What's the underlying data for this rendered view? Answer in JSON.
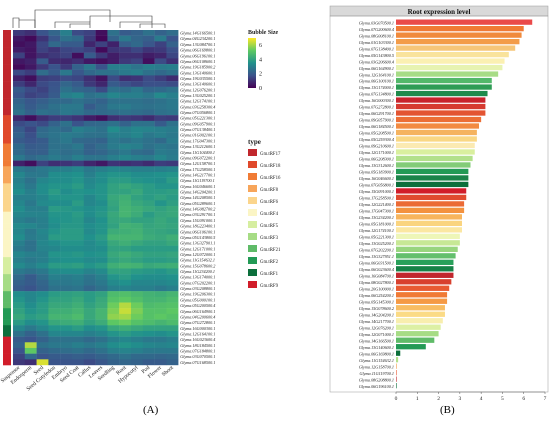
{
  "panels": {
    "a_label": "(A)",
    "b_label": "(B)"
  },
  "heatmap": {
    "genes": [
      "Glyma.14G166500.1",
      "Glyma.04G234200.1",
      "Glyma.13G084700.1",
      "Glyma.06G169800.1",
      "Glyma.06G196100.1",
      "Glyma.06G108600.1",
      "Glyma.19G185900.2",
      "Glyma.13G140600.1",
      "Glyma.19G035500.1",
      "Glyma.13G140600.1",
      "Glyma.12G076200.1",
      "Glyma.13G025200.1",
      "Glyma.12G174100.1",
      "Glyma.03G258300.4",
      "Glyma.07G056800.1",
      "Glyma.05G221300.1",
      "Glyma.09G057900.1",
      "Glyma.07G138400.1",
      "Glyma.01G002100.1",
      "Glyma.17G047300.1",
      "Glyma.13G212600.1",
      "Glyma.11G104400.1",
      "Glyma.09G072200.1",
      "Glyma.12G158700.1",
      "Glyma.17G258500.1",
      "Glyma.14G217700.1",
      "Glyma.11G119700.1",
      "Glyma.16G046600.1",
      "Glyma.14G204200.1",
      "Glyma.14G208500.1",
      "Glyma.05G289600.1",
      "Glyma.14G082700.2",
      "Glyma.03G291700.1",
      "Glyma.15G091000.1",
      "Glyma.18G223400.1",
      "Glyma.06G106100.1",
      "Glyma.05G143800.5",
      "Glyma.13G327901.1",
      "Glyma.12G171000.1",
      "Glyma.12G072000.1",
      "Glyma.11G154632.1",
      "Glyma.15G078600.2",
      "Glyma.11G234200.1",
      "Glyma.13G174000.1",
      "Glyma.07G202200.1",
      "Glyma.03G208800.1",
      "Glyma.19G206300.1",
      "Glyma.05G000100.1",
      "Glyma.05G200500.4",
      "Glyma.06G164900.1",
      "Glyma.04G200600.4",
      "Glyma.07G272800.1",
      "Glyma.16G000300.1",
      "Glyma.12G164100.1",
      "Glyma.16G023600.4",
      "Glyma.18G184500.1",
      "Glyma.07G184800.1",
      "Glyma.03G070500.1",
      "Glyma.07G168500.1"
    ],
    "tissues": [
      "Suspensor",
      "Endosperm",
      "Seed",
      "Seed Cotyledon",
      "Embryo",
      "Seed Coat",
      "Callus",
      "Leaves",
      "Seedling",
      "Root",
      "Hypocotyl",
      "Pod",
      "Flower",
      "Shoot"
    ],
    "legend_title": "Bubble Size",
    "legend_ticks": [
      "6",
      "4",
      "2",
      "0"
    ],
    "colorbar_stops": [
      "#440154",
      "#3b528b",
      "#21918c",
      "#5ec962",
      "#fde725"
    ],
    "type_title": "type",
    "types": [
      {
        "name": "Gm.tRF17",
        "color": "#c1272d"
      },
      {
        "name": "Gm.tRF18",
        "color": "#e0492b"
      },
      {
        "name": "Gm.tRF16",
        "color": "#f07b35"
      },
      {
        "name": "Gm.tRF8",
        "color": "#f7a55a"
      },
      {
        "name": "Gm.tRF6",
        "color": "#fbd58c"
      },
      {
        "name": "Gm.tRF4",
        "color": "#fbf5c5"
      },
      {
        "name": "Gm.tRF5",
        "color": "#d6eea0"
      },
      {
        "name": "Gm.tRF3",
        "color": "#a6dc85"
      },
      {
        "name": "Gm.tRF21",
        "color": "#5fbb68"
      },
      {
        "name": "Gm.tRF2",
        "color": "#239a55"
      },
      {
        "name": "Gm.tRF1",
        "color": "#0c6f3c"
      },
      {
        "name": "Gm.tRF9",
        "color": "#d11d2a"
      }
    ],
    "row_type_index": [
      0,
      0,
      0,
      0,
      0,
      0,
      0,
      0,
      0,
      0,
      0,
      0,
      0,
      0,
      0,
      1,
      1,
      1,
      1,
      1,
      2,
      2,
      2,
      2,
      3,
      3,
      3,
      4,
      4,
      4,
      4,
      4,
      5,
      5,
      5,
      5,
      5,
      5,
      5,
      5,
      6,
      6,
      6,
      7,
      7,
      7,
      8,
      8,
      8,
      9,
      9,
      9,
      10,
      10,
      11,
      11,
      11,
      11,
      11
    ],
    "values": [
      [
        1.2,
        1.0,
        1.8,
        2.3,
        3.0,
        1.6,
        1.4,
        0.3,
        2.6,
        2.0,
        2.2,
        2.6,
        2.2,
        2.5
      ],
      [
        0.5,
        0.2,
        1.1,
        1.9,
        2.6,
        2.4,
        1.2,
        0.1,
        2.2,
        2.8,
        2.3,
        2.1,
        2.9,
        1.8
      ],
      [
        0.3,
        0.5,
        1.5,
        2.4,
        2.0,
        2.0,
        0.8,
        1.4,
        0.7,
        2.1,
        2.4,
        1.9,
        1.4,
        2.2
      ],
      [
        0.6,
        0.4,
        1.4,
        1.1,
        1.5,
        1.6,
        1.4,
        0.2,
        1.1,
        1.2,
        1.5,
        1.1,
        1.2,
        1.7
      ],
      [
        1.4,
        0.4,
        1.0,
        1.2,
        1.4,
        0.3,
        2.0,
        1.2,
        0.6,
        1.0,
        1.0,
        0.6,
        0.8,
        1.5
      ],
      [
        0.5,
        0.7,
        2.0,
        0.9,
        0.8,
        1.0,
        0.5,
        0.3,
        0.6,
        1.2,
        1.4,
        0.3,
        1.6,
        1.0
      ],
      [
        0.2,
        0.5,
        1.2,
        1.8,
        1.2,
        2.2,
        2.8,
        1.8,
        3.0,
        3.0,
        2.7,
        3.0,
        2.9,
        3.0
      ],
      [
        1.6,
        1.3,
        2.5,
        2.0,
        2.8,
        1.9,
        2.4,
        2.6,
        2.6,
        2.9,
        3.0,
        2.6,
        2.4,
        2.6
      ],
      [
        0.7,
        0.3,
        1.3,
        1.4,
        1.6,
        1.5,
        1.0,
        0.4,
        1.6,
        1.0,
        1.1,
        1.6,
        1.3,
        0.9
      ],
      [
        1.3,
        0.8,
        1.6,
        1.8,
        2.3,
        2.0,
        1.2,
        0.8,
        2.0,
        1.7,
        1.5,
        1.7,
        1.7,
        1.6
      ],
      [
        2.0,
        1.6,
        1.4,
        1.9,
        2.6,
        2.3,
        2.2,
        1.6,
        2.6,
        2.5,
        2.8,
        2.3,
        2.4,
        2.6
      ],
      [
        1.8,
        1.4,
        1.6,
        2.0,
        3.0,
        3.2,
        2.6,
        2.8,
        3.2,
        3.0,
        3.0,
        2.8,
        3.3,
        3.0
      ],
      [
        2.2,
        1.9,
        2.1,
        2.4,
        2.4,
        2.6,
        2.4,
        2.2,
        2.6,
        2.6,
        2.6,
        2.5,
        2.6,
        2.8
      ],
      [
        2.4,
        2.0,
        2.3,
        2.6,
        2.8,
        2.8,
        2.0,
        2.4,
        2.8,
        2.9,
        2.7,
        2.6,
        2.7,
        2.8
      ],
      [
        2.6,
        2.2,
        2.6,
        2.5,
        2.8,
        2.7,
        2.4,
        2.4,
        2.5,
        2.6,
        2.5,
        2.4,
        2.6,
        2.7
      ],
      [
        0.8,
        0.3,
        1.0,
        1.3,
        1.3,
        1.1,
        0.6,
        0.3,
        1.0,
        1.2,
        1.1,
        0.9,
        1.3,
        1.2
      ],
      [
        1.6,
        1.8,
        1.6,
        2.2,
        2.6,
        1.8,
        2.3,
        2.4,
        2.6,
        2.2,
        2.6,
        2.6,
        2.0,
        2.6
      ],
      [
        2.0,
        1.5,
        2.4,
        2.6,
        2.4,
        3.0,
        2.8,
        2.6,
        3.4,
        3.0,
        3.2,
        3.1,
        3.0,
        2.9
      ],
      [
        2.2,
        1.7,
        2.5,
        2.7,
        2.9,
        2.8,
        2.6,
        2.6,
        3.0,
        3.0,
        3.2,
        2.8,
        3.0,
        2.8
      ],
      [
        2.0,
        1.8,
        2.0,
        2.6,
        2.8,
        2.4,
        2.3,
        2.2,
        2.8,
        2.6,
        2.8,
        2.6,
        2.4,
        2.9
      ],
      [
        2.4,
        2.0,
        2.1,
        2.6,
        2.6,
        2.8,
        2.2,
        2.5,
        2.9,
        3.1,
        3.0,
        2.6,
        2.8,
        2.7
      ],
      [
        2.4,
        2.1,
        2.1,
        2.7,
        2.5,
        2.6,
        2.2,
        2.3,
        2.6,
        2.8,
        2.5,
        2.4,
        2.9,
        2.8
      ],
      [
        2.8,
        2.4,
        2.6,
        2.9,
        2.7,
        3.0,
        2.7,
        2.7,
        3.0,
        3.2,
        3.0,
        2.9,
        3.2,
        2.9
      ],
      [
        0.7,
        0.3,
        1.4,
        1.0,
        1.1,
        1.3,
        0.8,
        0.5,
        1.1,
        1.0,
        1.1,
        0.9,
        1.3,
        1.2
      ],
      [
        2.8,
        2.6,
        2.8,
        3.0,
        3.0,
        3.2,
        2.8,
        3.0,
        3.2,
        3.1,
        3.0,
        3.0,
        3.0,
        3.1
      ],
      [
        3.2,
        2.8,
        2.8,
        3.4,
        3.4,
        3.5,
        3.0,
        3.4,
        3.6,
        3.6,
        3.4,
        3.4,
        3.5,
        3.6
      ],
      [
        3.0,
        2.6,
        3.2,
        3.4,
        3.4,
        3.6,
        3.2,
        3.4,
        3.8,
        3.8,
        3.6,
        3.5,
        3.4,
        3.8
      ],
      [
        3.2,
        2.8,
        3.4,
        3.6,
        3.6,
        3.8,
        3.3,
        3.6,
        4.0,
        4.2,
        4.0,
        3.8,
        3.6,
        3.6
      ],
      [
        3.4,
        3.0,
        3.4,
        3.8,
        3.4,
        3.6,
        3.5,
        3.6,
        4.0,
        4.0,
        4.2,
        3.8,
        3.8,
        3.9
      ],
      [
        3.0,
        3.0,
        3.2,
        3.6,
        3.6,
        3.6,
        3.2,
        3.6,
        4.2,
        4.4,
        4.0,
        3.8,
        4.0,
        3.8
      ],
      [
        3.2,
        2.8,
        3.3,
        3.4,
        3.4,
        3.8,
        3.2,
        3.4,
        4.1,
        4.5,
        4.2,
        4.0,
        3.6,
        3.9
      ],
      [
        3.4,
        3.0,
        3.0,
        3.8,
        3.7,
        3.6,
        3.4,
        3.6,
        4.0,
        4.6,
        4.4,
        4.2,
        4.0,
        4.2
      ],
      [
        3.2,
        3.1,
        3.1,
        3.6,
        3.6,
        3.8,
        3.4,
        3.7,
        4.2,
        4.6,
        4.3,
        3.8,
        4.1,
        4.2
      ],
      [
        3.0,
        2.8,
        3.0,
        3.5,
        3.6,
        3.7,
        3.2,
        3.5,
        4.1,
        4.2,
        4.0,
        4.0,
        4.2,
        4.0
      ],
      [
        3.3,
        3.2,
        3.0,
        3.4,
        3.7,
        3.7,
        3.4,
        3.6,
        4.0,
        4.5,
        4.4,
        4.1,
        4.2,
        4.1
      ],
      [
        3.2,
        2.8,
        3.2,
        3.6,
        3.8,
        3.8,
        3.3,
        3.6,
        4.3,
        4.4,
        4.5,
        4.2,
        4.1,
        4.0
      ],
      [
        3.4,
        2.9,
        3.1,
        3.8,
        3.8,
        3.8,
        3.5,
        3.8,
        4.6,
        4.6,
        4.6,
        4.3,
        4.2,
        4.4
      ],
      [
        3.0,
        2.6,
        3.2,
        3.4,
        3.6,
        3.6,
        3.3,
        3.6,
        4.2,
        4.4,
        4.2,
        4.0,
        4.0,
        4.2
      ],
      [
        2.8,
        2.6,
        3.1,
        3.2,
        3.4,
        3.4,
        3.3,
        3.4,
        4.0,
        4.0,
        3.8,
        3.8,
        3.8,
        3.8
      ],
      [
        3.2,
        3.0,
        3.0,
        3.6,
        3.6,
        3.7,
        3.5,
        3.6,
        4.2,
        4.4,
        4.2,
        4.0,
        4.0,
        4.1
      ],
      [
        3.0,
        2.8,
        3.0,
        3.4,
        3.5,
        3.5,
        3.3,
        3.4,
        4.0,
        4.2,
        4.0,
        3.8,
        3.8,
        3.9
      ],
      [
        3.3,
        3.0,
        3.3,
        3.8,
        3.8,
        3.9,
        3.6,
        3.8,
        4.4,
        4.6,
        4.5,
        4.2,
        4.3,
        4.4
      ],
      [
        2.8,
        2.6,
        2.8,
        3.3,
        3.4,
        3.4,
        3.1,
        3.3,
        4.0,
        4.0,
        3.8,
        3.7,
        3.6,
        3.8
      ],
      [
        2.4,
        2.0,
        2.5,
        3.0,
        2.9,
        3.0,
        2.7,
        3.0,
        3.6,
        3.8,
        3.5,
        3.4,
        3.4,
        3.5
      ],
      [
        2.2,
        2.0,
        2.3,
        2.8,
        2.8,
        2.9,
        2.6,
        2.8,
        3.3,
        3.5,
        3.2,
        3.2,
        3.2,
        3.3
      ],
      [
        2.0,
        1.8,
        2.2,
        2.6,
        2.6,
        2.7,
        2.3,
        2.6,
        3.0,
        3.1,
        3.0,
        3.0,
        2.8,
        3.0
      ],
      [
        3.4,
        3.2,
        3.4,
        3.8,
        3.9,
        4.0,
        3.8,
        4.0,
        4.8,
        4.9,
        4.7,
        4.5,
        4.4,
        4.6
      ],
      [
        3.6,
        3.2,
        3.6,
        4.0,
        4.0,
        4.2,
        3.8,
        4.2,
        5.0,
        5.2,
        4.9,
        4.6,
        4.6,
        4.8
      ],
      [
        3.8,
        3.4,
        3.8,
        4.2,
        4.2,
        4.4,
        4.0,
        4.3,
        5.4,
        6.2,
        5.4,
        4.8,
        4.9,
        5.0
      ],
      [
        4.0,
        3.6,
        3.8,
        4.4,
        4.4,
        4.6,
        4.2,
        4.6,
        5.6,
        6.4,
        5.6,
        5.0,
        5.0,
        5.2
      ],
      [
        4.2,
        3.8,
        4.0,
        4.6,
        4.6,
        4.8,
        4.2,
        4.6,
        5.8,
        6.0,
        5.4,
        5.0,
        5.2,
        5.0
      ],
      [
        3.8,
        3.4,
        3.6,
        4.2,
        4.3,
        4.4,
        4.0,
        4.3,
        5.2,
        5.4,
        5.0,
        4.8,
        4.6,
        4.8
      ],
      [
        3.2,
        2.8,
        3.2,
        3.6,
        3.6,
        3.8,
        3.4,
        3.6,
        4.2,
        4.4,
        4.2,
        4.0,
        4.0,
        4.0
      ],
      [
        2.6,
        2.2,
        2.6,
        3.2,
        3.2,
        3.2,
        3.0,
        3.2,
        3.6,
        3.8,
        3.6,
        3.5,
        3.4,
        3.6
      ],
      [
        2.0,
        1.8,
        2.2,
        2.6,
        2.6,
        2.6,
        2.4,
        2.6,
        3.0,
        3.2,
        3.0,
        2.8,
        2.8,
        3.0
      ],
      [
        2.2,
        6.2,
        2.6,
        2.8,
        2.8,
        3.0,
        2.8,
        3.0,
        3.4,
        3.6,
        3.4,
        3.2,
        3.1,
        3.2
      ],
      [
        1.8,
        5.2,
        2.2,
        2.4,
        2.5,
        2.6,
        2.4,
        2.6,
        3.0,
        3.1,
        3.0,
        2.8,
        2.8,
        2.8
      ],
      [
        1.4,
        2.4,
        1.8,
        2.0,
        2.0,
        2.1,
        2.0,
        2.2,
        2.4,
        2.6,
        2.4,
        2.4,
        2.3,
        2.4
      ],
      [
        1.2,
        1.0,
        6.6,
        1.8,
        1.8,
        1.8,
        1.6,
        1.9,
        2.2,
        2.3,
        2.2,
        2.0,
        2.0,
        2.2
      ]
    ]
  },
  "chart_data": {
    "type": "bar",
    "title": "Root expression level",
    "orientation": "horizontal",
    "xlim": [
      0,
      7
    ],
    "xticks": [
      "0",
      "1",
      "2",
      "3",
      "4",
      "5",
      "6",
      "7"
    ],
    "categories": [
      "Glyma.03G070500.1",
      "Glyma.07G200600.4",
      "Glyma.08G008100.1",
      "Glyma.01G103300.1",
      "Glyma.07G138400.1",
      "Glyma.05G143800.5",
      "Glyma.03G206600.4",
      "Glyma.06G164900.1",
      "Glyma.12G164100.1",
      "Glyma.06G100100.1",
      "Glyma.13G174000.1",
      "Glyma.07G134800.1",
      "Glyma.16G000300.1",
      "Glyma.07G272800.1",
      "Glyma.06G291700.1",
      "Glyma.09G057900.1",
      "Glyma.06G184500.1",
      "Glyma.05G208500.1",
      "Glyma.05G259300.4",
      "Glyma.09G210600.1",
      "Glyma.12G171000.1",
      "Glyma.06G208300.1",
      "Glyma.13G312600.1",
      "Glyma.05G183900.1",
      "Glyma.16G046600.1",
      "Glyma.07G056800.1",
      "Glyma.15G091000.1",
      "Glyma.17G258500.1",
      "Glyma.12G221400.1",
      "Glyma.17G047300.1",
      "Glyma.13G234200.1",
      "Glyma.05G181000.1",
      "Glyma.12G174100.1",
      "Glyma.05G221300.1",
      "Glyma.13G025200.1",
      "Glyma.07G202200.1",
      "Glyma.13G327951.1",
      "Glyma.06G031500.1",
      "Glyma.06G023600.4",
      "Glyma.16G084700.1",
      "Glyma.08G027800.1",
      "Glyma.20G100000.1",
      "Glyma.06G254200.1",
      "Glyma.05G145300.1",
      "Glyma.15G078600.2",
      "Glyma.14G204200.1",
      "Glyma.14G217700.1",
      "Glyma.12G076200.1",
      "Glyma.12G071000.1",
      "Glyma.14G166500.1",
      "Glyma.13G140600.1",
      "Glyma.06G169800.1",
      "Glyma.11G154632.1",
      "Glyma.12G158700.1",
      "Glyma.11G119700.1",
      "Glyma.08G208800.1",
      "Glyma.06G196100.1"
    ],
    "values": [
      6.4,
      6.0,
      5.9,
      5.8,
      5.6,
      5.3,
      5.1,
      5.0,
      4.8,
      4.5,
      4.5,
      4.3,
      4.2,
      4.2,
      4.2,
      4.0,
      3.9,
      3.8,
      3.8,
      3.7,
      3.7,
      3.6,
      3.5,
      3.4,
      3.4,
      3.4,
      3.3,
      3.3,
      3.2,
      3.2,
      3.1,
      3.1,
      3.1,
      3.0,
      3.0,
      2.9,
      2.8,
      2.7,
      2.7,
      2.7,
      2.6,
      2.5,
      2.4,
      2.4,
      2.3,
      2.3,
      2.2,
      2.1,
      2.0,
      1.8,
      1.4,
      0.2,
      0.1,
      0.0,
      0.0,
      0.0,
      0.0
    ],
    "colors": [
      "#ea4a4a",
      "#f07a35",
      "#f08a3c",
      "#f39c49",
      "#f6c679",
      "#f9e39c",
      "#fbf0b2",
      "#e7f3b1",
      "#a7dc86",
      "#53b86a",
      "#2e9c55",
      "#1f8a4c",
      "#c8232c",
      "#d63a30",
      "#e35432",
      "#ec6e35",
      "#f28a41",
      "#f5b35f",
      "#f9d784",
      "#fbeab2",
      "#d9ef9e",
      "#b2e08a",
      "#83cc78",
      "#239a55",
      "#1b8449",
      "#0c6f3c",
      "#d11d2a",
      "#e04a2f",
      "#eb6a35",
      "#f3923f",
      "#f7b55d",
      "#fad47f",
      "#fbe7a2",
      "#eef6b8",
      "#c7e895",
      "#98d57e",
      "#63bf6d",
      "#28a05a",
      "#168247",
      "#c1272d",
      "#d8402e",
      "#e85a32",
      "#f07a35",
      "#f59a45",
      "#f8bd63",
      "#fbdb86",
      "#f8eeae",
      "#dcf0a4",
      "#a6dc85",
      "#5fbb68",
      "#239a55",
      "#0c6f3c",
      "#b2e08a",
      "#f59a45",
      "#e85a32",
      "#c1272d",
      "#0c6f3c"
    ]
  }
}
